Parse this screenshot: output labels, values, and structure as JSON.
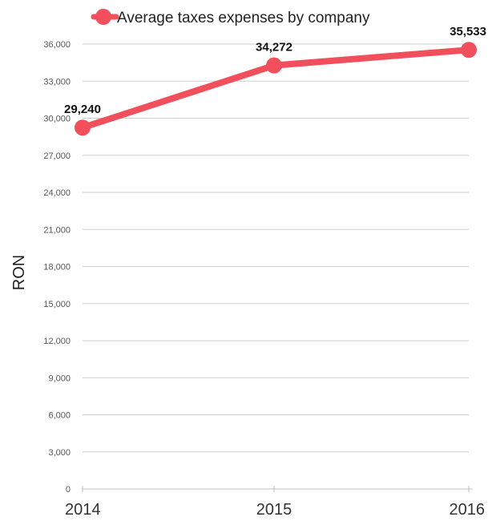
{
  "chart_data": {
    "type": "line",
    "categories": [
      "2014",
      "2015",
      "2016"
    ],
    "series": [
      {
        "name": "Average taxes expenses by company",
        "values": [
          29240,
          34272,
          35533
        ],
        "color": "#f24f5c"
      }
    ],
    "data_labels": [
      "29,240",
      "34,272",
      "35,533"
    ],
    "ylabel": "RON",
    "xlabel": "",
    "ylim": [
      0,
      36000
    ],
    "yticks": [
      0,
      3000,
      6000,
      9000,
      12000,
      15000,
      18000,
      21000,
      24000,
      27000,
      30000,
      33000,
      36000
    ],
    "ytick_labels": [
      "0",
      "3,000",
      "6,000",
      "9,000",
      "12,000",
      "15,000",
      "18,000",
      "21,000",
      "24,000",
      "27,000",
      "30,000",
      "33,000",
      "36,000"
    ],
    "grid": true,
    "legend_position": "top-center"
  }
}
